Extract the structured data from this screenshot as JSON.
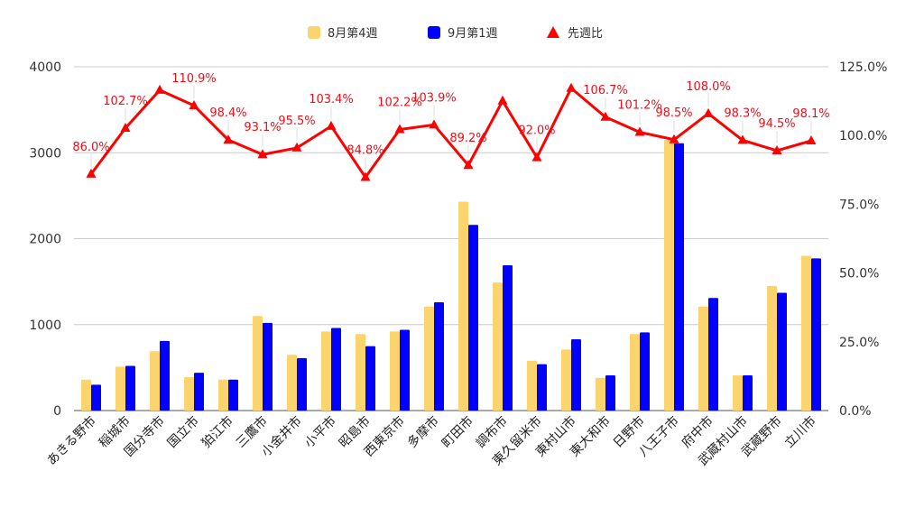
{
  "chart_data": {
    "type": "bar",
    "categories": [
      "あきる野市",
      "稲城市",
      "国分寺市",
      "国立市",
      "狛江市",
      "三鷹市",
      "小金井市",
      "小平市",
      "昭島市",
      "西東京市",
      "多摩市",
      "町田市",
      "調布市",
      "東久留米市",
      "東村山市",
      "東大和市",
      "日野市",
      "八王子市",
      "府中市",
      "武蔵村山市",
      "武蔵野市",
      "立川市"
    ],
    "series": [
      {
        "name": "8月第4週",
        "type": "bar",
        "axis": "left",
        "color": "#fcd46e",
        "values": [
          360,
          510,
          690,
          390,
          360,
          1100,
          650,
          920,
          890,
          920,
          1210,
          2430,
          1490,
          580,
          710,
          380,
          890,
          3150,
          1210,
          410,
          1450,
          1800
        ]
      },
      {
        "name": "9月第1週",
        "type": "bar",
        "axis": "left",
        "color": "#0000ff",
        "values": [
          300,
          520,
          810,
          440,
          360,
          1020,
          610,
          960,
          750,
          940,
          1260,
          2160,
          1690,
          540,
          830,
          410,
          910,
          3110,
          1310,
          410,
          1370,
          1770
        ]
      },
      {
        "name": "先週比",
        "type": "line",
        "axis": "right",
        "color": "#ff0000",
        "values": [
          86.0,
          102.7,
          116.5,
          110.9,
          98.4,
          93.1,
          95.5,
          103.4,
          84.8,
          102.2,
          103.9,
          89.2,
          112.6,
          92.0,
          117.2,
          106.7,
          101.2,
          98.5,
          108.0,
          98.3,
          94.5,
          98.1
        ]
      }
    ],
    "data_labels": [
      {
        "index": 0,
        "text": "86.0%"
      },
      {
        "index": 1,
        "text": "102.7%"
      },
      {
        "index": 3,
        "text": "110.9%"
      },
      {
        "index": 4,
        "text": "98.4%"
      },
      {
        "index": 5,
        "text": "93.1%"
      },
      {
        "index": 6,
        "text": "95.5%"
      },
      {
        "index": 7,
        "text": "103.4%"
      },
      {
        "index": 8,
        "text": "84.8%"
      },
      {
        "index": 9,
        "text": "102.2%"
      },
      {
        "index": 10,
        "text": "103.9%"
      },
      {
        "index": 11,
        "text": "89.2%"
      },
      {
        "index": 13,
        "text": "92.0%"
      },
      {
        "index": 15,
        "text": "106.7%"
      },
      {
        "index": 16,
        "text": "101.2%"
      },
      {
        "index": 17,
        "text": "98.5%"
      },
      {
        "index": 18,
        "text": "108.0%"
      },
      {
        "index": 19,
        "text": "98.3%"
      },
      {
        "index": 20,
        "text": "94.5%"
      },
      {
        "index": 21,
        "text": "98.1%"
      }
    ],
    "y_left": {
      "min": 0,
      "max": 4000,
      "ticks": [
        "0",
        "1000",
        "2000",
        "3000",
        "4000"
      ]
    },
    "y_right": {
      "min": 0,
      "max": 125,
      "ticks": [
        "0.0%",
        "25.0%",
        "50.0%",
        "75.0%",
        "100.0%",
        "125.0%"
      ]
    },
    "title": "",
    "xlabel": "",
    "ylabel": "",
    "legend": {
      "position": "top"
    },
    "grid": true
  }
}
